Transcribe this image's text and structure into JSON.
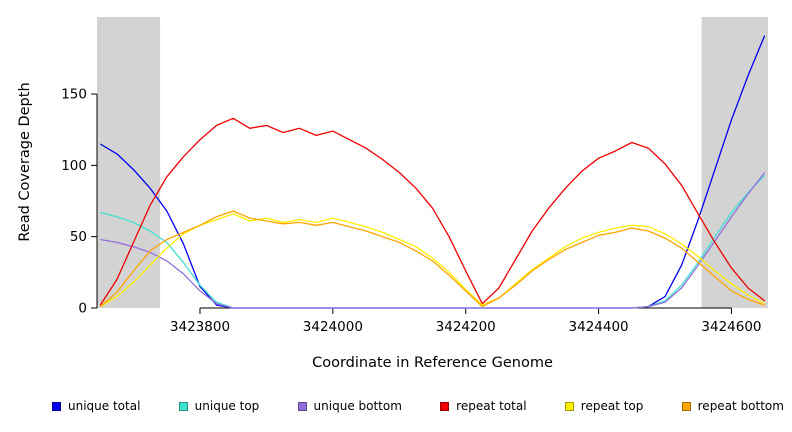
{
  "chart_data": {
    "type": "line",
    "title": "",
    "xlabel": "Coordinate in Reference Genome",
    "ylabel": "Read Coverage Depth",
    "xlim": [
      3423645,
      3424655
    ],
    "ylim": [
      0,
      204
    ],
    "xticks": [
      3423800,
      3424000,
      3424200,
      3424400,
      3424600
    ],
    "yticks": [
      0,
      50,
      100,
      150
    ],
    "grid": false,
    "legend_position": "bottom",
    "shade_color": "#d3d3d3",
    "shaded_regions": [
      [
        3423645,
        3423740
      ],
      [
        3424555,
        3424655
      ]
    ],
    "x": [
      3423650,
      3423675,
      3423700,
      3423725,
      3423750,
      3423775,
      3423800,
      3423825,
      3423850,
      3423875,
      3423900,
      3423925,
      3423950,
      3423975,
      3424000,
      3424025,
      3424050,
      3424075,
      3424100,
      3424125,
      3424150,
      3424175,
      3424200,
      3424225,
      3424250,
      3424275,
      3424300,
      3424325,
      3424350,
      3424375,
      3424400,
      3424425,
      3424450,
      3424475,
      3424500,
      3424525,
      3424550,
      3424575,
      3424600,
      3424625,
      3424650
    ],
    "series": [
      {
        "name": "unique total",
        "color": "#0000ee",
        "values": [
          115,
          108,
          97,
          84,
          68,
          45,
          15,
          2,
          0,
          0,
          0,
          0,
          0,
          0,
          0,
          0,
          0,
          0,
          0,
          0,
          0,
          0,
          0,
          0,
          0,
          0,
          0,
          0,
          0,
          0,
          0,
          0,
          0,
          1,
          8,
          30,
          62,
          97,
          132,
          163,
          191
        ]
      },
      {
        "name": "unique top",
        "color": "#40e0d0",
        "values": [
          67,
          64,
          60,
          54,
          46,
          32,
          16,
          4,
          0,
          0,
          0,
          0,
          0,
          0,
          0,
          0,
          0,
          0,
          0,
          0,
          0,
          0,
          0,
          0,
          0,
          0,
          0,
          0,
          0,
          0,
          0,
          0,
          0,
          1,
          5,
          16,
          32,
          50,
          67,
          81,
          93
        ]
      },
      {
        "name": "unique bottom",
        "color": "#9370db",
        "values": [
          48,
          46,
          43,
          39,
          33,
          24,
          12,
          3,
          0,
          0,
          0,
          0,
          0,
          0,
          0,
          0,
          0,
          0,
          0,
          0,
          0,
          0,
          0,
          0,
          0,
          0,
          0,
          0,
          0,
          0,
          0,
          0,
          0,
          1,
          4,
          14,
          30,
          47,
          64,
          80,
          95
        ]
      },
      {
        "name": "repeat total",
        "color": "#ee0000",
        "values": [
          2,
          20,
          46,
          72,
          92,
          106,
          118,
          128,
          133,
          126,
          128,
          123,
          126,
          121,
          124,
          118,
          112,
          104,
          95,
          84,
          70,
          50,
          26,
          3,
          14,
          34,
          54,
          70,
          84,
          96,
          105,
          110,
          116,
          112,
          101,
          86,
          66,
          46,
          28,
          14,
          5
        ]
      },
      {
        "name": "repeat top",
        "color": "#ffee00",
        "values": [
          1,
          8,
          18,
          30,
          42,
          52,
          58,
          62,
          66,
          61,
          63,
          60,
          62,
          60,
          63,
          60,
          57,
          53,
          48,
          43,
          35,
          25,
          13,
          2,
          7,
          17,
          27,
          35,
          43,
          49,
          53,
          56,
          58,
          57,
          52,
          45,
          36,
          26,
          17,
          9,
          3
        ]
      },
      {
        "name": "repeat bottom",
        "color": "#ffa500",
        "values": [
          1,
          11,
          26,
          40,
          48,
          53,
          58,
          64,
          68,
          63,
          61,
          59,
          60,
          58,
          60,
          57,
          54,
          50,
          46,
          40,
          33,
          23,
          12,
          1,
          7,
          16,
          26,
          34,
          41,
          46,
          51,
          53,
          56,
          54,
          49,
          42,
          32,
          22,
          12,
          6,
          2
        ]
      }
    ]
  }
}
